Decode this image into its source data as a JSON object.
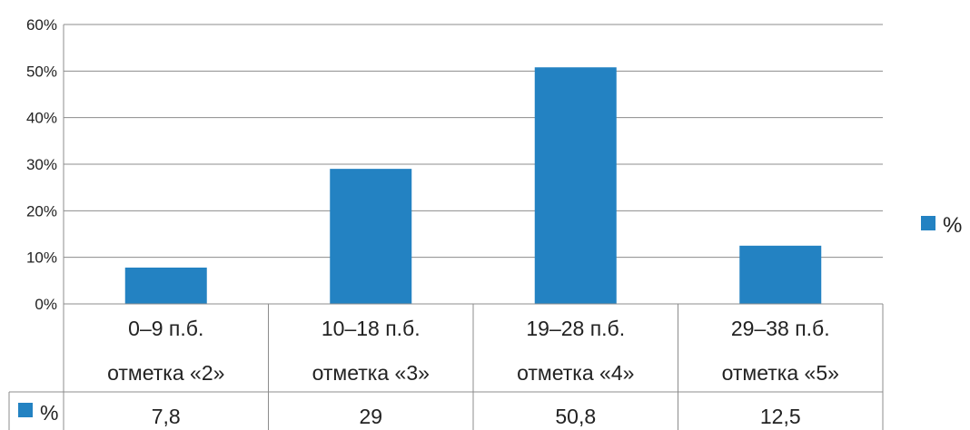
{
  "chart_data": {
    "type": "bar",
    "categories": [
      [
        "0–9 п.б.",
        "отметка «2»"
      ],
      [
        "10–18 п.б.",
        "отметка «3»"
      ],
      [
        "19–28 п.б.",
        "отметка «4»"
      ],
      [
        "29–38 п.б.",
        "отметка «5»"
      ]
    ],
    "series": [
      {
        "name": "%",
        "values": [
          7.8,
          29,
          50.8,
          12.5
        ],
        "labels": [
          "7,8",
          "29",
          "50,8",
          "12,5"
        ],
        "color": "#2382C2"
      }
    ],
    "ylim": [
      0,
      60
    ],
    "yticks": [
      "0%",
      "10%",
      "20%",
      "30%",
      "40%",
      "50%",
      "60%"
    ],
    "legend": {
      "label": "%",
      "position": "right"
    },
    "data_table": true,
    "grid": true
  }
}
